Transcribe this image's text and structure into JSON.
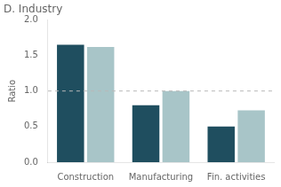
{
  "chart_data": {
    "type": "bar",
    "title": "D. Industry",
    "y_label": "Ratio",
    "categories": [
      "Construction",
      "Manufacturing",
      "Fin. activities"
    ],
    "series": [
      {
        "color": "#1f4e5f",
        "values": [
          1.65,
          0.8,
          0.5
        ]
      },
      {
        "color": "#a8c5c8",
        "values": [
          1.62,
          1.0,
          0.73
        ]
      }
    ],
    "ylim": [
      0.0,
      2.0
    ],
    "yticks": [
      {
        "value": 0.0,
        "label": "0.0"
      },
      0.5,
      {
        "value": 1.0,
        "label": "1.0"
      },
      1.5,
      {
        "value": 2.0,
        "label": "2.0"
      }
    ],
    "hline": {
      "y": 1.0,
      "color": "#b8b8b8",
      "line_style": "dashed"
    },
    "grid": false
  }
}
